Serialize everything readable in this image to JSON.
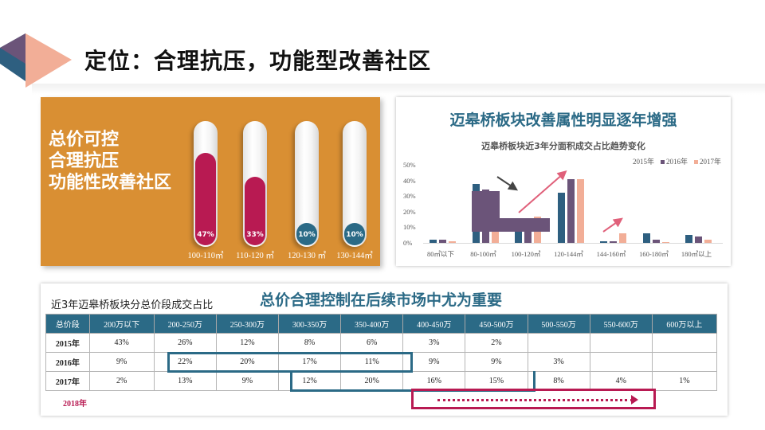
{
  "page": {
    "title": "定位：合理抗压，功能型改善社区"
  },
  "colors": {
    "orange_panel": "#d98f33",
    "accent_red": "#b81a52",
    "accent_blue": "#2b6a86",
    "purple": "#6b5479",
    "salmon": "#f2ae97",
    "deco_blue": "#2e5f80",
    "deco_purple": "#6b5479",
    "deco_salmon": "#f2ae97"
  },
  "left_panel": {
    "slogan_lines": [
      "总价可控",
      "合理抗压",
      "功能性改善社区"
    ],
    "tubes": [
      {
        "label": "100-110㎡",
        "value": "47%",
        "percent": 47,
        "color": "red"
      },
      {
        "label": "110-120 ㎡",
        "value": "33%",
        "percent": 33,
        "color": "red"
      },
      {
        "label": "120-130 ㎡",
        "value": "10%",
        "percent": 10,
        "color": "blue"
      },
      {
        "label": "130-144㎡",
        "value": "10%",
        "percent": 10,
        "color": "blue"
      }
    ]
  },
  "chart_data": {
    "type": "bar",
    "headline": "迈皋桥板块改善属性明显逐年增强",
    "title": "迈皋桥板块近3年分面积成交占比趋势变化",
    "xlabel": "",
    "ylabel": "",
    "ylim": [
      0,
      50
    ],
    "yticks": [
      "50%",
      "40%",
      "30%",
      "20%",
      "10%",
      "0%"
    ],
    "legend_position": "top-right",
    "grid": false,
    "categories": [
      "80㎡以下",
      "80-100㎡",
      "100-120㎡",
      "120-144㎡",
      "144-160㎡",
      "160-180㎡",
      "180㎡以上"
    ],
    "series": [
      {
        "name": "2015年",
        "color": "#2e5f80",
        "values": [
          2,
          38,
          10,
          32,
          1,
          6,
          5
        ]
      },
      {
        "name": "2016年",
        "color": "#6b5479",
        "values": [
          2,
          34,
          10,
          41,
          1,
          2,
          4
        ]
      },
      {
        "name": "2017年",
        "color": "#f2ae97",
        "values": [
          1,
          10,
          17,
          41,
          6,
          0.5,
          2
        ]
      }
    ],
    "annotations": [
      "downward arrow 80-100㎡ → 100-120㎡",
      "upward arrow 100-120㎡ → 120-144㎡",
      "upward arrow 144-160㎡"
    ]
  },
  "table": {
    "caption": "近3年迈皋桥板块分总价段成交占比",
    "headline": "总价合理控制在后续市场中尤为重要",
    "headers": [
      "总价段",
      "200万以下",
      "200-250万",
      "250-300万",
      "300-350万",
      "350-400万",
      "400-450万",
      "450-500万",
      "500-550万",
      "550-600万",
      "600万以上"
    ],
    "rows": [
      [
        "2015年",
        "43%",
        "26%",
        "12%",
        "8%",
        "6%",
        "3%",
        "2%",
        "",
        "",
        ""
      ],
      [
        "2016年",
        "9%",
        "22%",
        "20%",
        "17%",
        "11%",
        "9%",
        "9%",
        "3%",
        "",
        ""
      ],
      [
        "2017年",
        "2%",
        "13%",
        "9%",
        "12%",
        "20%",
        "16%",
        "15%",
        "8%",
        "4%",
        "1%"
      ]
    ],
    "row_2018_label": "2018年"
  }
}
